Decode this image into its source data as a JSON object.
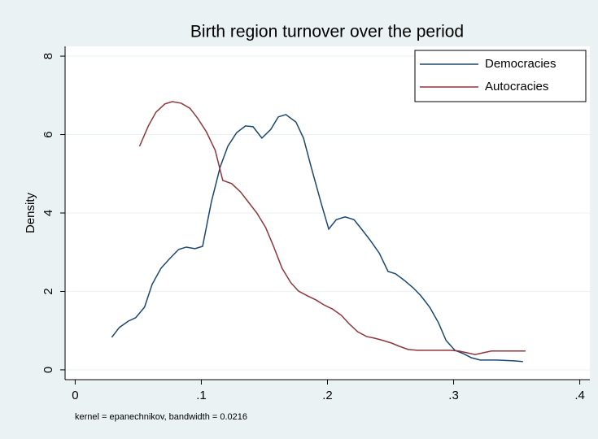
{
  "chart_data": {
    "type": "line",
    "title": "Birth region turnover over the period",
    "ylabel": "Density",
    "note": "kernel = epanechnikov, bandwidth = 0.0216",
    "xlim": [
      -0.008,
      0.408
    ],
    "ylim": [
      -0.25,
      8.25
    ],
    "xticks": [
      0,
      {
        "value": 0.1,
        "label": ".1"
      },
      {
        "value": 0.2,
        "label": ".2"
      },
      {
        "value": 0.3,
        "label": ".3"
      },
      {
        "value": 0.4,
        "label": ".4"
      }
    ],
    "yticks": [
      0,
      2,
      4,
      6,
      8
    ],
    "grid": true,
    "legend": "top-right",
    "series": [
      {
        "name": "Democracies",
        "color": "#1a476f",
        "x": [
          0.029,
          0.035,
          0.042,
          0.048,
          0.055,
          0.061,
          0.068,
          0.075,
          0.082,
          0.088,
          0.095,
          0.101,
          0.108,
          0.115,
          0.121,
          0.128,
          0.135,
          0.141,
          0.148,
          0.155,
          0.161,
          0.167,
          0.175,
          0.181,
          0.187,
          0.195,
          0.201,
          0.207,
          0.214,
          0.221,
          0.227,
          0.234,
          0.241,
          0.248,
          0.254,
          0.261,
          0.268,
          0.274,
          0.281,
          0.288,
          0.294,
          0.301,
          0.308,
          0.314,
          0.321,
          0.328,
          0.334,
          0.341,
          0.348,
          0.355
        ],
        "values": [
          0.83,
          1.08,
          1.24,
          1.33,
          1.6,
          2.18,
          2.59,
          2.84,
          3.07,
          3.13,
          3.09,
          3.15,
          4.29,
          5.18,
          5.7,
          6.05,
          6.22,
          6.2,
          5.91,
          6.13,
          6.45,
          6.51,
          6.32,
          5.91,
          5.18,
          4.25,
          3.59,
          3.83,
          3.9,
          3.83,
          3.59,
          3.3,
          2.98,
          2.51,
          2.45,
          2.28,
          2.09,
          1.89,
          1.6,
          1.2,
          0.75,
          0.5,
          0.41,
          0.31,
          0.25,
          0.25,
          0.25,
          0.24,
          0.23,
          0.21
        ]
      },
      {
        "name": "Autocracies",
        "color": "#90353b",
        "x": [
          0.051,
          0.058,
          0.064,
          0.071,
          0.077,
          0.084,
          0.091,
          0.097,
          0.104,
          0.111,
          0.117,
          0.124,
          0.131,
          0.137,
          0.144,
          0.151,
          0.157,
          0.164,
          0.171,
          0.177,
          0.184,
          0.191,
          0.197,
          0.204,
          0.211,
          0.217,
          0.224,
          0.231,
          0.237,
          0.244,
          0.251,
          0.257,
          0.264,
          0.271,
          0.277,
          0.284,
          0.291,
          0.297,
          0.304,
          0.31,
          0.317,
          0.324,
          0.33,
          0.337,
          0.344,
          0.35,
          0.357
        ],
        "values": [
          5.7,
          6.22,
          6.57,
          6.78,
          6.84,
          6.8,
          6.67,
          6.42,
          6.07,
          5.6,
          4.83,
          4.75,
          4.54,
          4.29,
          4.0,
          3.63,
          3.17,
          2.59,
          2.22,
          2.01,
          1.89,
          1.78,
          1.66,
          1.55,
          1.39,
          1.18,
          0.97,
          0.85,
          0.81,
          0.75,
          0.68,
          0.6,
          0.52,
          0.5,
          0.5,
          0.5,
          0.5,
          0.5,
          0.48,
          0.44,
          0.39,
          0.44,
          0.48,
          0.48,
          0.48,
          0.48,
          0.48
        ]
      }
    ]
  }
}
